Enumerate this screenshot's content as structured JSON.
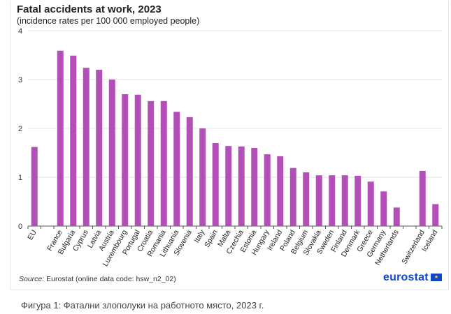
{
  "chart_data": {
    "type": "bar",
    "title": "Fatal accidents at work, 2023",
    "subtitle": "(incidence rates per 100 000 employed  people)",
    "xlabel": "",
    "ylabel": "",
    "ylim": [
      0,
      4
    ],
    "yticks": [
      "0",
      "1",
      "2",
      "3",
      "4"
    ],
    "grid": true,
    "color": "#b350b8",
    "categories": [
      "EU",
      "",
      "France",
      "Bulgaria",
      "Cyprus",
      "Latvia",
      "Austria",
      "Luxembourg",
      "Portugal",
      "Croatia",
      "Romania",
      "Lithuania",
      "Slovenia",
      "Italy",
      "Spain",
      "Malta",
      "Czechia",
      "Estonia",
      "Hungary",
      "Ireland",
      "Poland",
      "Belgium",
      "Slovakia",
      "Sweden",
      "Finland",
      "Denmark",
      "Greece",
      "Germany",
      "Netherlands",
      "",
      "Switzerland",
      "Iceland"
    ],
    "values": [
      1.62,
      null,
      3.59,
      3.49,
      3.24,
      3.2,
      3.0,
      2.7,
      2.69,
      2.56,
      2.56,
      2.34,
      2.23,
      2.0,
      1.7,
      1.64,
      1.63,
      1.6,
      1.47,
      1.43,
      1.19,
      1.1,
      1.04,
      1.04,
      1.04,
      1.03,
      0.91,
      0.71,
      0.38,
      null,
      1.13,
      0.45
    ]
  },
  "source": {
    "label": "Source:",
    "text": " Eurostat (online data code: hsw_n2_02)"
  },
  "logo": "eurostat",
  "caption": "Фигура 1: Фатални злополуки на работното място, 2023 г."
}
